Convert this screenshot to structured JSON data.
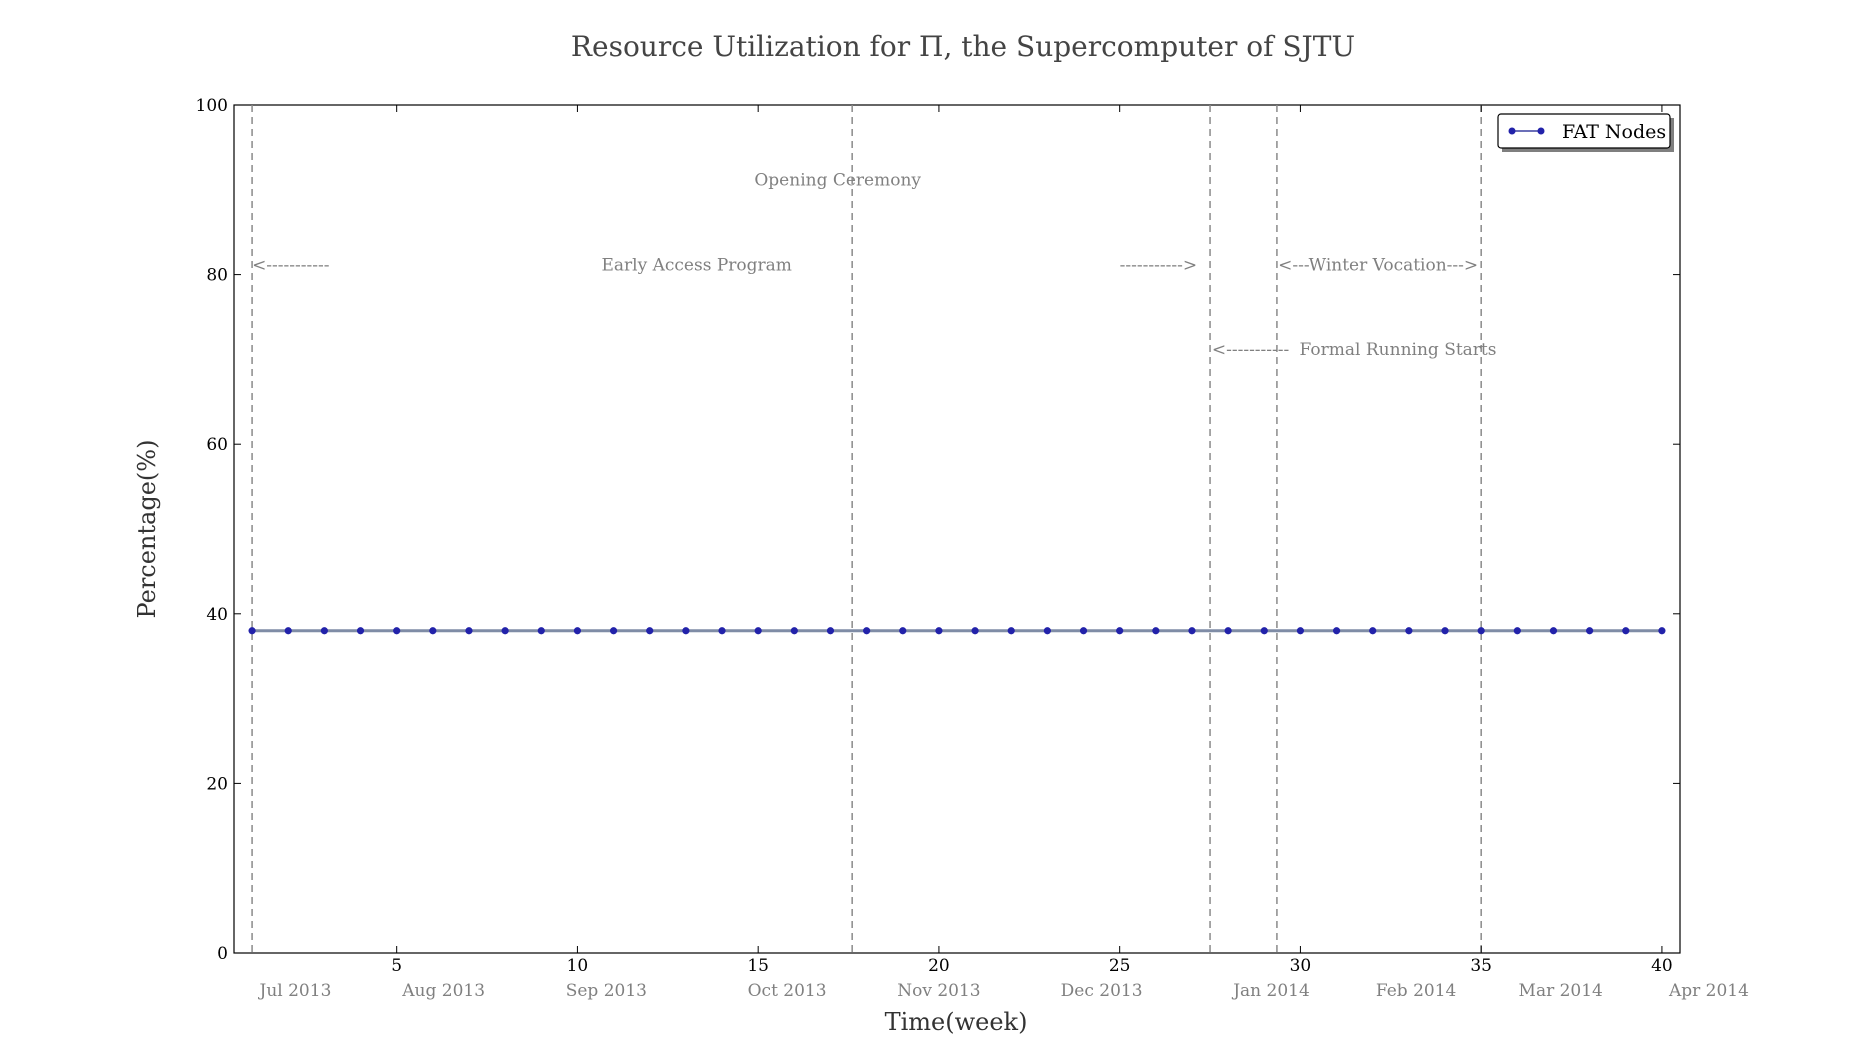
{
  "chart_data": {
    "type": "line",
    "title": "Resource Utilization for Π, the Supercomputer of SJTU",
    "xlabel": "Time(week)",
    "ylabel": "Percentage(%)",
    "xlim": [
      0.5,
      40.5
    ],
    "ylim": [
      0,
      100
    ],
    "xticks": [
      5,
      10,
      15,
      20,
      25,
      30,
      35,
      40
    ],
    "yticks": [
      0,
      20,
      40,
      60,
      80,
      100
    ],
    "grid": false,
    "legend_position": "top-right",
    "x": [
      1,
      2,
      3,
      4,
      5,
      6,
      7,
      8,
      9,
      10,
      11,
      12,
      13,
      14,
      15,
      16,
      17,
      18,
      19,
      20,
      21,
      22,
      23,
      24,
      25,
      26,
      27,
      28,
      29,
      30,
      31,
      32,
      33,
      34,
      35,
      36,
      37,
      38,
      39,
      40
    ],
    "series": [
      {
        "name": "FAT Nodes",
        "color": "#2222aa",
        "line_color": "#7f8ca6",
        "values": [
          38,
          38,
          38,
          38,
          38,
          38,
          38,
          38,
          38,
          38,
          38,
          38,
          38,
          38,
          38,
          38,
          38,
          38,
          38,
          38,
          38,
          38,
          38,
          38,
          38,
          38,
          38,
          38,
          38,
          38,
          38,
          38,
          38,
          38,
          38,
          38,
          38,
          38,
          38,
          38
        ]
      }
    ],
    "month_labels": [
      {
        "label": "Jul 2013",
        "week": 2.2
      },
      {
        "label": "Aug 2013",
        "week": 6.3
      },
      {
        "label": "Sep 2013",
        "week": 10.8
      },
      {
        "label": "Oct 2013",
        "week": 15.8
      },
      {
        "label": "Nov 2013",
        "week": 20.0
      },
      {
        "label": "Dec 2013",
        "week": 24.5
      },
      {
        "label": "Jan 2014",
        "week": 29.2
      },
      {
        "label": "Feb 2014",
        "week": 33.2
      },
      {
        "label": "Mar 2014",
        "week": 37.2
      },
      {
        "label": "Apr 2014",
        "week": 41.3
      }
    ],
    "event_lines": [
      1.0,
      17.6,
      27.5,
      29.35,
      35.0
    ],
    "annotations": [
      {
        "text": "Opening Ceremony",
        "x": 17.2,
        "y": 90.5
      },
      {
        "text": "<-----------",
        "x": 1.0,
        "y": 80.5
      },
      {
        "text": "Early Access Program",
        "x": 13.3,
        "y": 80.5
      },
      {
        "text": "----------->",
        "x": 25.0,
        "y": 80.5
      },
      {
        "text": "<---Winter  Vocation--->",
        "x": 32.15,
        "y": 80.5
      },
      {
        "text": "<-----------",
        "x": 27.55,
        "y": 70.5
      },
      {
        "text": "Formal Running Starts",
        "x": 32.7,
        "y": 70.5
      }
    ]
  }
}
